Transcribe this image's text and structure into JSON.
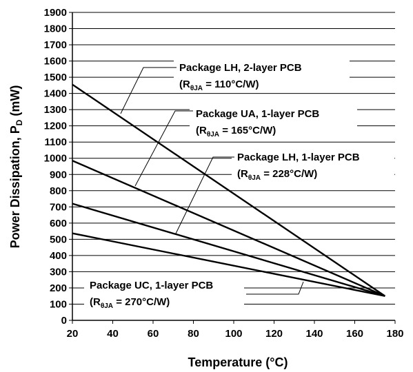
{
  "chart_data": {
    "type": "line",
    "title": "",
    "xlabel": "Temperature (°C)",
    "ylabel": {
      "main": "Power Dissipation, P",
      "subscript": "D",
      "unit": " (mW)"
    },
    "xlim": [
      20,
      180
    ],
    "ylim": [
      0,
      1900
    ],
    "x_ticks": [
      "20",
      "40",
      "60",
      "80",
      "100",
      "120",
      "140",
      "160",
      "180"
    ],
    "y_ticks": [
      "0",
      "100",
      "200",
      "300",
      "400",
      "500",
      "600",
      "700",
      "800",
      "900",
      "1000",
      "1100",
      "1200",
      "1300",
      "1400",
      "1500",
      "1600",
      "1700",
      "1800",
      "1900"
    ],
    "grid": {
      "horizontal": true,
      "vertical": false
    },
    "legend": "none",
    "series": [
      {
        "label": "Package LH, 2-layer PCB",
        "r_prefix": "(R",
        "r_sub": "θJA",
        "r_suffix": " = 110°C/W)",
        "x": [
          20,
          175
        ],
        "y": [
          1455,
          150
        ]
      },
      {
        "label": "Package UA, 1-layer PCB",
        "r_prefix": "(R",
        "r_sub": "θJA",
        "r_suffix": " = 165°C/W)",
        "x": [
          20,
          175
        ],
        "y": [
          985,
          150
        ]
      },
      {
        "label": "Package LH, 1-layer PCB",
        "r_prefix": "(R",
        "r_sub": "θJA",
        "r_suffix": " = 228°C/W)",
        "x": [
          20,
          175
        ],
        "y": [
          720,
          150
        ]
      },
      {
        "label": "Package UC, 1-layer PCB",
        "r_prefix": "(R",
        "r_sub": "θJA",
        "r_suffix": " = 270°C/W)",
        "x": [
          20,
          175
        ],
        "y": [
          537,
          150
        ]
      }
    ],
    "line_color": "#000000"
  }
}
